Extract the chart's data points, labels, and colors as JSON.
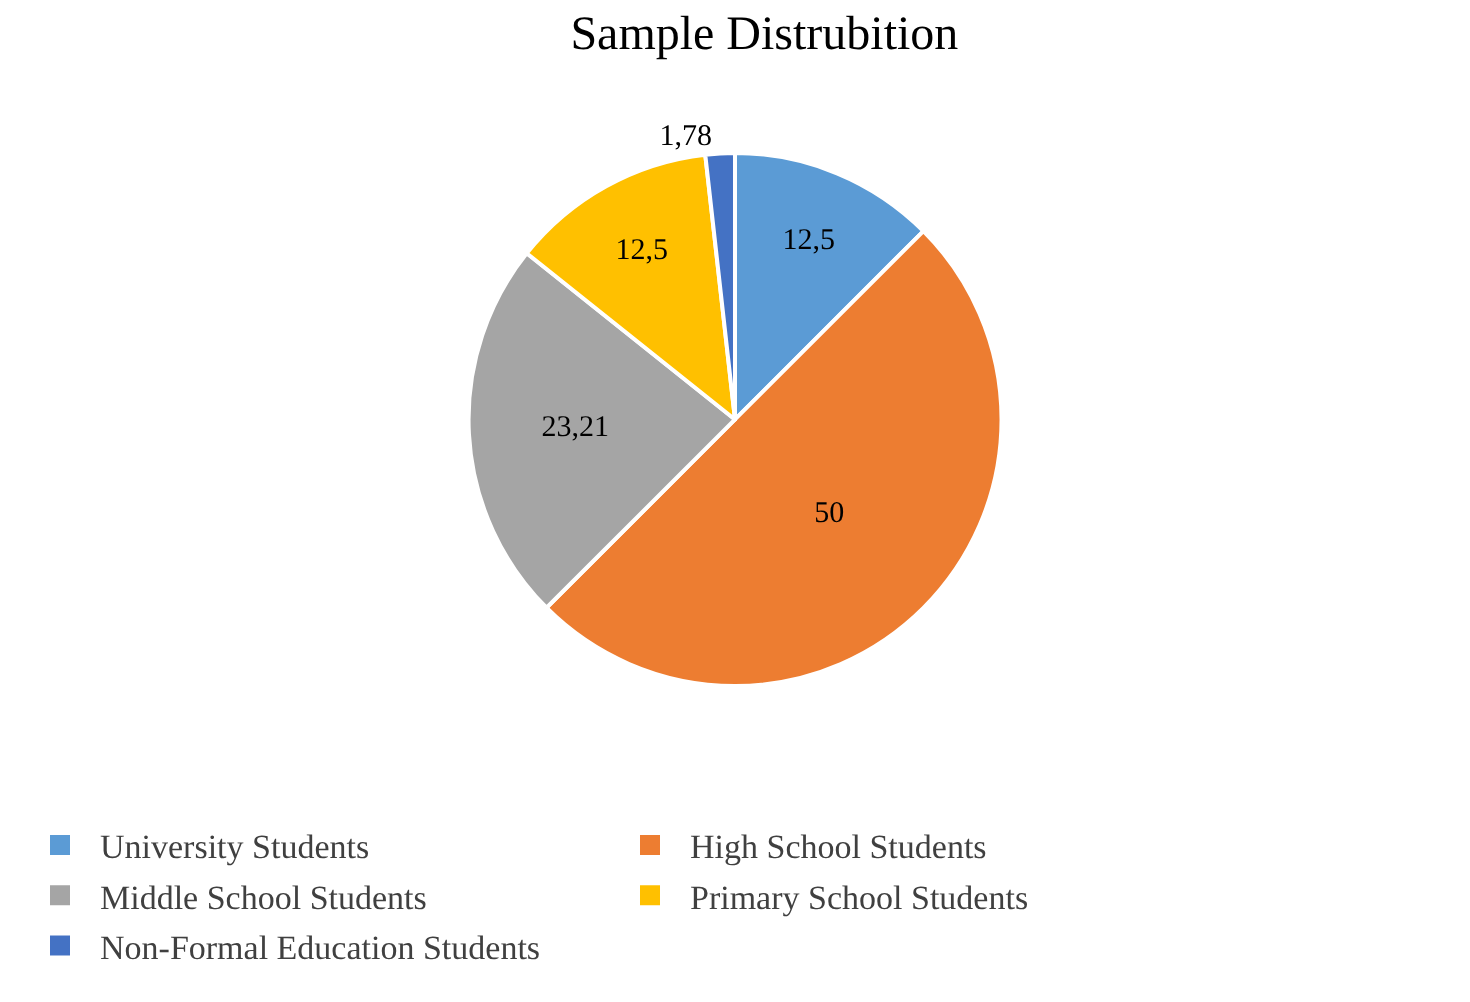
{
  "chart_data": {
    "type": "pie",
    "title": "Sample Distrubition",
    "categories": [
      "University Students",
      "High School Students",
      "Middle School Students",
      "Primary School Students",
      "Non-Formal Education Students"
    ],
    "values": [
      12.5,
      50,
      23.21,
      12.5,
      1.78
    ],
    "value_labels": [
      "12,5",
      "50",
      "23,21",
      "12,5",
      "1,78"
    ],
    "colors": [
      "#5b9bd5",
      "#ed7d31",
      "#a5a5a5",
      "#ffc000",
      "#4472c4"
    ],
    "legend": "bottom"
  }
}
